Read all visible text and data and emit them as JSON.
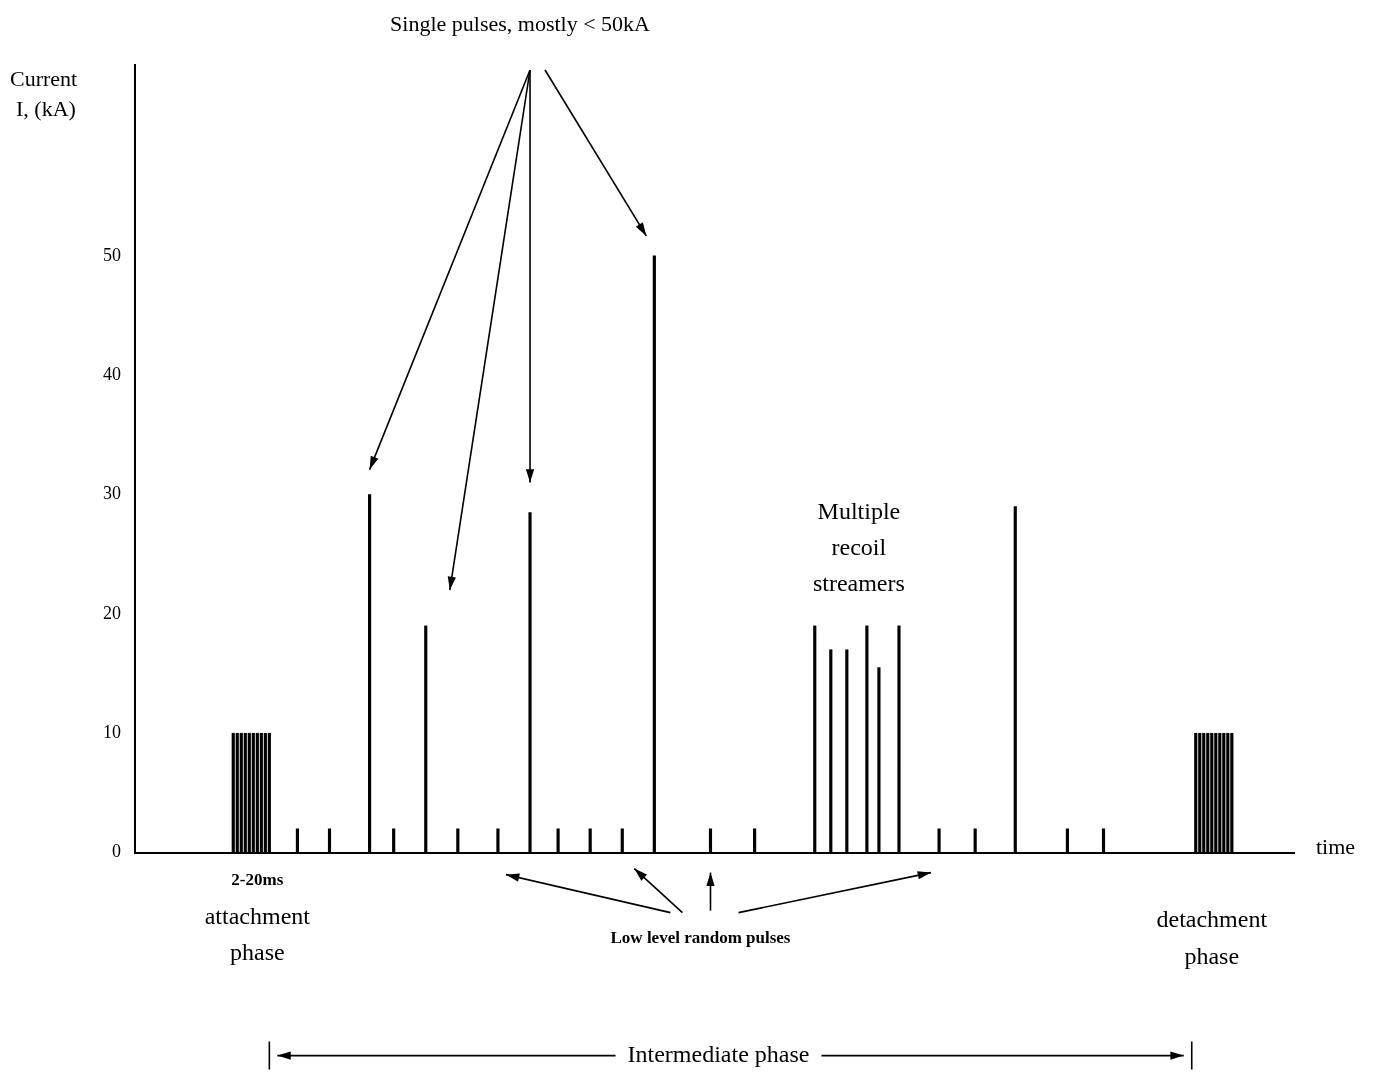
{
  "chart_data": {
    "type": "bar",
    "xlabel": "time",
    "ylabel": "Current I, (kA)",
    "color": "#000000",
    "categories": [
      null,
      null,
      null,
      null,
      null,
      null,
      null,
      null,
      null,
      null,
      null,
      null,
      null,
      null,
      null,
      null,
      null,
      null,
      null,
      null,
      null,
      null,
      null,
      null,
      null,
      null,
      null,
      null,
      null,
      null,
      null,
      null,
      null,
      null,
      null,
      null,
      null,
      null,
      null,
      null,
      null,
      null,
      null,
      null,
      null,
      null,
      null,
      null,
      null,
      null,
      null,
      null,
      null,
      null,
      null,
      null,
      null,
      null,
      null,
      null,
      null,
      null,
      null,
      null,
      null,
      null,
      null,
      null,
      null,
      null,
      null,
      null,
      null,
      null,
      null,
      null,
      null,
      null,
      null,
      null,
      null,
      null,
      null,
      null,
      null,
      null,
      null,
      null,
      null,
      null,
      null,
      null,
      null,
      null,
      null,
      null,
      null,
      null,
      null,
      null,
      null,
      null,
      null,
      null,
      null,
      null,
      null,
      null,
      null,
      null,
      null,
      null,
      null,
      null,
      null,
      null,
      null,
      null,
      null,
      null,
      null,
      null,
      null,
      null,
      null,
      null,
      null,
      null,
      null,
      null,
      null,
      null,
      null,
      null,
      null,
      null,
      null,
      null,
      null,
      null,
      null,
      null,
      null,
      null,
      null,
      null,
      null,
      null,
      null,
      null,
      null,
      null,
      null,
      null,
      null,
      null,
      null,
      null,
      null,
      null,
      null,
      null,
      null,
      null,
      null,
      null,
      null,
      null,
      null,
      null,
      null,
      null,
      null,
      null,
      null,
      null,
      null,
      null,
      null,
      null,
      null,
      null,
      null,
      null,
      null,
      null,
      null,
      null,
      null,
      null,
      null,
      null,
      null,
      null,
      null,
      null,
      null,
      null,
      null,
      null,
      null,
      null,
      null,
      null,
      null,
      null,
      null,
      null,
      null,
      null,
      null,
      null,
      null,
      null,
      null,
      null,
      null,
      null,
      null,
      null,
      null,
      null,
      null,
      null,
      null,
      null,
      null,
      null,
      null,
      null,
      null,
      null,
      null,
      null,
      null,
      null,
      null,
      null,
      null,
      null,
      null,
      null,
      null,
      null,
      null,
      null,
      null,
      null,
      null,
      null,
      null,
      null,
      null,
      null,
      null,
      null,
      null,
      null,
      null,
      null,
      null,
      null,
      null,
      null,
      null,
      null,
      null,
      null,
      null,
      null,
      null,
      null,
      null,
      null,
      null,
      null,
      null,
      null,
      null,
      null,
      null,
      null,
      null,
      null,
      null,
      null,
      null,
      null,
      null
    ],
    "values": [
      null,
      null,
      null,
      null,
      null,
      null,
      null,
      null,
      null,
      null,
      null,
      null,
      null,
      null,
      null,
      null,
      null,
      null,
      null,
      null,
      null,
      null,
      null,
      null,
      10,
      10,
      10,
      10,
      10,
      10,
      10,
      10,
      10,
      10,
      null,
      null,
      null,
      null,
      null,
      null,
      2,
      null,
      null,
      null,
      null,
      null,
      null,
      null,
      2,
      null,
      null,
      null,
      null,
      null,
      null,
      null,
      null,
      null,
      30,
      null,
      null,
      null,
      null,
      null,
      2,
      null,
      null,
      null,
      null,
      null,
      null,
      null,
      19,
      null,
      null,
      null,
      null,
      null,
      null,
      null,
      2,
      null,
      null,
      null,
      null,
      null,
      null,
      null,
      null,
      null,
      2,
      null,
      null,
      null,
      null,
      null,
      null,
      null,
      28.5,
      null,
      null,
      null,
      null,
      null,
      null,
      2,
      null,
      null,
      null,
      null,
      null,
      null,
      null,
      2,
      null,
      null,
      null,
      null,
      null,
      null,
      null,
      2,
      null,
      null,
      null,
      null,
      null,
      null,
      null,
      50,
      null,
      null,
      null,
      null,
      null,
      null,
      null,
      null,
      null,
      null,
      null,
      null,
      null,
      2,
      null,
      null,
      null,
      null,
      null,
      null,
      null,
      null,
      null,
      null,
      2,
      null,
      null,
      null,
      null,
      null,
      null,
      null,
      null,
      null,
      null,
      null,
      null,
      null,
      null,
      19,
      null,
      null,
      null,
      17,
      null,
      null,
      null,
      17,
      null,
      null,
      null,
      null,
      19,
      null,
      null,
      15.5,
      null,
      null,
      null,
      null,
      19,
      null,
      null,
      null,
      null,
      null,
      null,
      null,
      null,
      null,
      2,
      null,
      null,
      null,
      null,
      null,
      null,
      null,
      null,
      2,
      null,
      null,
      null,
      null,
      null,
      null,
      null,
      null,
      null,
      29,
      null,
      null,
      null,
      null,
      null,
      null,
      null,
      null,
      null,
      null,
      null,
      null,
      2,
      null,
      null,
      null,
      null,
      null,
      null,
      null,
      null,
      2,
      null,
      null,
      null,
      null,
      null,
      null,
      null,
      null,
      null,
      null,
      null,
      null,
      null,
      null,
      null,
      null,
      null,
      null,
      null,
      null,
      null,
      null,
      10,
      10,
      10,
      10,
      10,
      10,
      10,
      10,
      10,
      10,
      null,
      null,
      null,
      null,
      null,
      null,
      null,
      null,
      null,
      null,
      null,
      null,
      null,
      null,
      null
    ],
    "ylim": [
      0,
      66
    ],
    "yticks": [
      0,
      10,
      20,
      30,
      40,
      50
    ],
    "grid": false,
    "legend": false,
    "annotations": [
      "Single pulses, mostly < 50kA",
      "Multiple recoil streamers",
      "2-20ms attachment phase",
      "Low level random pulses",
      "detachment phase",
      "Intermediate phase"
    ]
  }
}
